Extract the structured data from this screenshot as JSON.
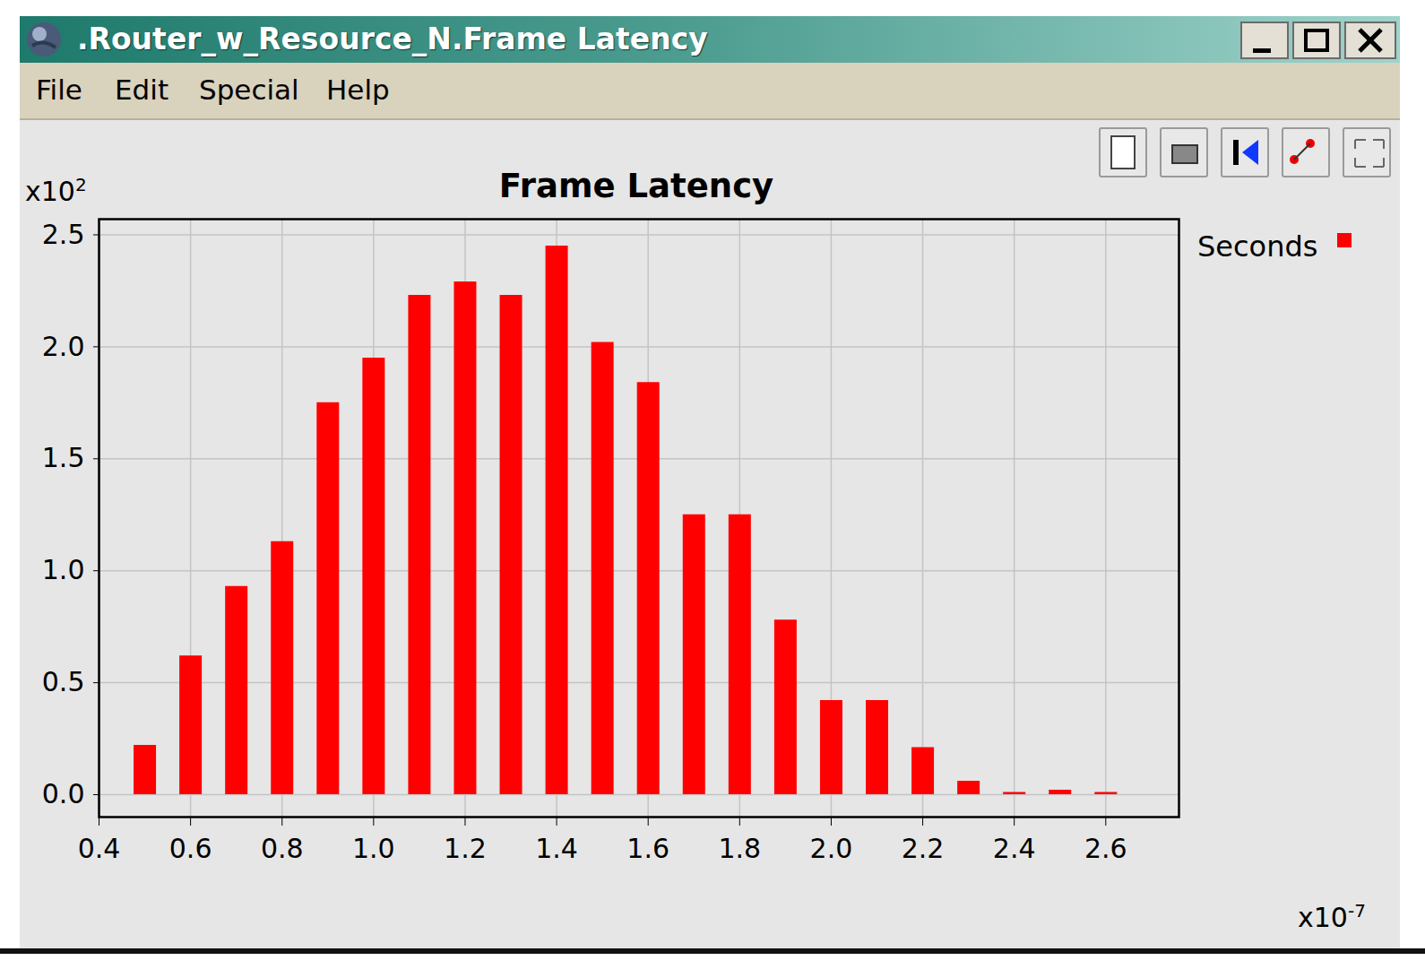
{
  "window": {
    "title": ".Router_w_Resource_N.Frame Latency",
    "menu": [
      "File",
      "Edit",
      "Special",
      "Help"
    ]
  },
  "chart_data": {
    "type": "bar",
    "title": "Frame Latency",
    "y_multiplier": {
      "text": "x10",
      "exponent": "2"
    },
    "x_multiplier": {
      "text": "x10",
      "exponent": "-7"
    },
    "x": [
      0.5,
      0.6,
      0.7,
      0.8,
      0.9,
      1.0,
      1.1,
      1.2,
      1.3,
      1.4,
      1.5,
      1.6,
      1.7,
      1.8,
      1.9,
      2.0,
      2.1,
      2.2,
      2.3,
      2.4,
      2.5,
      2.6
    ],
    "series": [
      {
        "name": "Seconds",
        "color": "#ff0000",
        "values": [
          0.22,
          0.62,
          0.93,
          1.13,
          1.75,
          1.95,
          2.23,
          2.29,
          2.23,
          2.45,
          2.02,
          1.84,
          1.25,
          1.25,
          0.78,
          0.42,
          0.42,
          0.21,
          0.06,
          0.01,
          0.02,
          0.01
        ]
      }
    ],
    "xlim": [
      0.4,
      2.76
    ],
    "xticks": [
      0.4,
      0.6,
      0.8,
      {
        "value": 1,
        "label": "1.0"
      },
      1.2,
      1.4,
      1.6,
      1.8,
      {
        "value": 2,
        "label": "2.0"
      },
      2.2,
      2.4,
      2.6
    ],
    "ylim": [
      -0.1,
      2.57
    ],
    "yticks": [
      {
        "value": 0,
        "label": "0.0"
      },
      0.5,
      {
        "value": 1,
        "label": "1.0"
      },
      1.5,
      {
        "value": 2,
        "label": "2.0"
      },
      2.5
    ],
    "grid": true,
    "legend": "top-right"
  }
}
